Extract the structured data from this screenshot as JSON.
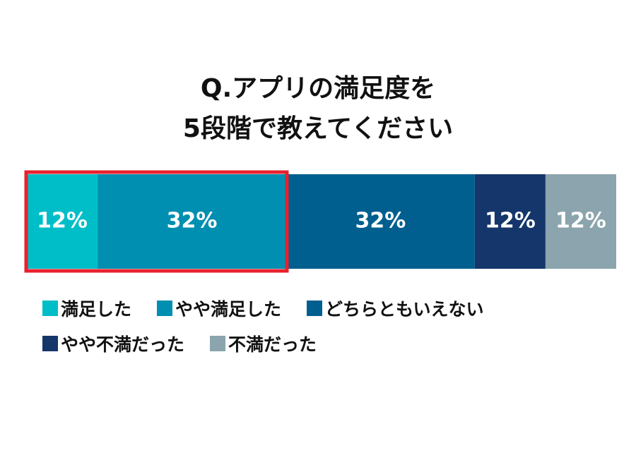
{
  "chart_data": {
    "type": "bar",
    "orientation": "horizontal",
    "stacked": true,
    "title": [
      "Q.アプリの満足度を",
      "5段階で教えてください"
    ],
    "series": [
      {
        "name": "満足した",
        "color": "#00bec8",
        "values": [
          12
        ],
        "value_labels": [
          "12%"
        ]
      },
      {
        "name": "やや満足した",
        "color": "#008fb1",
        "values": [
          32
        ],
        "value_labels": [
          "32%"
        ]
      },
      {
        "name": "どちらともいえない",
        "color": "#005f8f",
        "values": [
          32
        ],
        "value_labels": [
          "32%"
        ]
      },
      {
        "name": "やや不満だった",
        "color": "#14366b",
        "values": [
          12
        ],
        "value_labels": [
          "12%"
        ]
      },
      {
        "name": "不満だった",
        "color": "#8ba4ad",
        "values": [
          12
        ],
        "value_labels": [
          "12%"
        ]
      }
    ],
    "highlight_color": "#e8212e"
  }
}
